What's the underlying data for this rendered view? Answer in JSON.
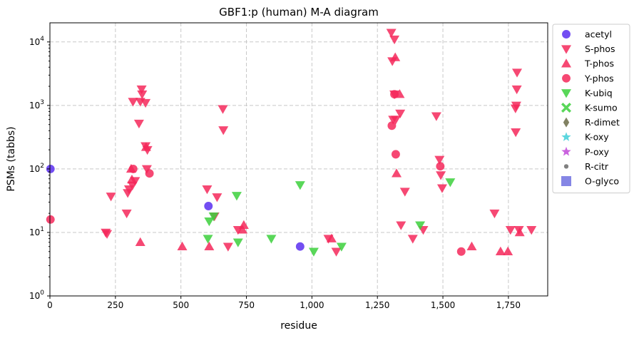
{
  "chart_data": {
    "type": "scatter",
    "title": "GBF1:p (human) M-A diagram",
    "xlabel": "residue",
    "ylabel": "PSMs (tabbs)",
    "xlim": [
      0,
      1900
    ],
    "ylim": [
      1,
      20000
    ],
    "yscale": "log",
    "grid": true,
    "legend_position": "outside-right",
    "x_ticks": [
      0,
      250,
      500,
      750,
      1000,
      1250,
      1500,
      1750
    ],
    "x_tick_labels": [
      "0",
      "250",
      "500",
      "750",
      "1,000",
      "1,250",
      "1,500",
      "1,750"
    ],
    "y_ticks": [
      1,
      10,
      100,
      1000,
      10000
    ],
    "y_tick_labels": [
      {
        "base": "10",
        "exp": "0"
      },
      {
        "base": "10",
        "exp": "1"
      },
      {
        "base": "10",
        "exp": "2"
      },
      {
        "base": "10",
        "exp": "3"
      },
      {
        "base": "10",
        "exp": "4"
      }
    ],
    "series": [
      {
        "name": "acetyl",
        "color": "#5b2ff0",
        "marker": "circle",
        "points": [
          [
            2,
            100
          ],
          [
            605,
            26
          ],
          [
            955,
            6
          ]
        ]
      },
      {
        "name": "S-phos",
        "color": "#f5285a",
        "marker": "triangle-down",
        "points": [
          [
            213,
            10
          ],
          [
            218,
            9.5
          ],
          [
            233,
            37
          ],
          [
            293,
            20
          ],
          [
            297,
            42
          ],
          [
            302,
            48
          ],
          [
            315,
            55
          ],
          [
            317,
            1150
          ],
          [
            325,
            65
          ],
          [
            340,
            520
          ],
          [
            345,
            1150
          ],
          [
            350,
            1800
          ],
          [
            352,
            1500
          ],
          [
            365,
            1100
          ],
          [
            365,
            230
          ],
          [
            370,
            100
          ],
          [
            372,
            200
          ],
          [
            600,
            48
          ],
          [
            638,
            36
          ],
          [
            628,
            18
          ],
          [
            660,
            880
          ],
          [
            662,
            410
          ],
          [
            680,
            6
          ],
          [
            718,
            11
          ],
          [
            1063,
            8
          ],
          [
            1093,
            5
          ],
          [
            1303,
            14000
          ],
          [
            1307,
            5000
          ],
          [
            1315,
            11000
          ],
          [
            1310,
            600
          ],
          [
            1315,
            1500
          ],
          [
            1320,
            600
          ],
          [
            1337,
            750
          ],
          [
            1340,
            13
          ],
          [
            1355,
            44
          ],
          [
            1385,
            8
          ],
          [
            1425,
            11
          ],
          [
            1475,
            680
          ],
          [
            1487,
            140
          ],
          [
            1492,
            80
          ],
          [
            1497,
            50
          ],
          [
            1697,
            20
          ],
          [
            1758,
            11
          ],
          [
            1777,
            900
          ],
          [
            1778,
            380
          ],
          [
            1780,
            1000
          ],
          [
            1782,
            1800
          ],
          [
            1783,
            3300
          ],
          [
            1790,
            11
          ],
          [
            1838,
            11
          ]
        ]
      },
      {
        "name": "T-phos",
        "color": "#f5285a",
        "marker": "triangle-up",
        "points": [
          [
            310,
            100
          ],
          [
            313,
            68
          ],
          [
            345,
            7
          ],
          [
            367,
            220
          ],
          [
            505,
            6
          ],
          [
            608,
            6
          ],
          [
            735,
            11
          ],
          [
            740,
            13
          ],
          [
            1075,
            8
          ],
          [
            1318,
            5700
          ],
          [
            1323,
            85
          ],
          [
            1335,
            1500
          ],
          [
            1610,
            6
          ],
          [
            1720,
            5
          ],
          [
            1748,
            5
          ],
          [
            1793,
            10
          ]
        ]
      },
      {
        "name": "Y-phos",
        "color": "#f5285a",
        "marker": "circle",
        "points": [
          [
            2,
            16
          ],
          [
            318,
            100
          ],
          [
            380,
            85
          ],
          [
            1305,
            480
          ],
          [
            1315,
            1500
          ],
          [
            1320,
            170
          ],
          [
            1490,
            110
          ],
          [
            1570,
            5
          ]
        ]
      },
      {
        "name": "K-ubiq",
        "color": "#3cd03c",
        "marker": "triangle-down",
        "points": [
          [
            603,
            8
          ],
          [
            608,
            15
          ],
          [
            625,
            18
          ],
          [
            713,
            38
          ],
          [
            718,
            7
          ],
          [
            845,
            8
          ],
          [
            955,
            56
          ],
          [
            1007,
            5
          ],
          [
            1113,
            6
          ],
          [
            1413,
            13
          ],
          [
            1528,
            62
          ]
        ]
      },
      {
        "name": "K-sumo",
        "color": "#3cd03c",
        "marker": "x",
        "points": []
      },
      {
        "name": "R-dimet",
        "color": "#6b6b46",
        "marker": "diamond",
        "points": []
      },
      {
        "name": "K-oxy",
        "color": "#3fcfd8",
        "marker": "star",
        "points": []
      },
      {
        "name": "P-oxy",
        "color": "#c148d8",
        "marker": "star",
        "points": []
      },
      {
        "name": "R-citr",
        "color": "#6a6a6a",
        "marker": "point",
        "points": []
      },
      {
        "name": "O-glyco",
        "color": "#7071e0",
        "marker": "square",
        "points": []
      }
    ]
  }
}
